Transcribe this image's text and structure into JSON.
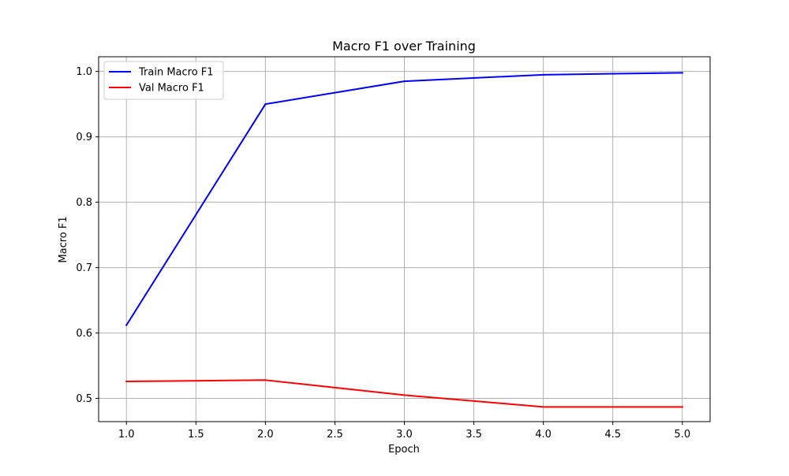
{
  "chart_data": {
    "type": "line",
    "title": "Macro F1 over Training",
    "xlabel": "Epoch",
    "ylabel": "Macro F1",
    "x": [
      1,
      2,
      3,
      4,
      5
    ],
    "xlim": [
      0.8,
      5.2
    ],
    "ylim": [
      0.4645,
      1.0225
    ],
    "xticks": [
      "1.0",
      "1.5",
      "2.0",
      "2.5",
      "3.0",
      "3.5",
      "4.0",
      "4.5",
      "5.0"
    ],
    "yticks": [
      "0.5",
      "0.6",
      "0.7",
      "0.8",
      "0.9",
      "1.0"
    ],
    "grid": true,
    "legend_position": "top-left",
    "series": [
      {
        "name": "Train Macro F1",
        "color": "#0000ff",
        "values": [
          0.612,
          0.95,
          0.985,
          0.995,
          0.998
        ]
      },
      {
        "name": "Val Macro F1",
        "color": "#ff0000",
        "values": [
          0.526,
          0.528,
          0.505,
          0.487,
          0.487
        ]
      }
    ]
  }
}
